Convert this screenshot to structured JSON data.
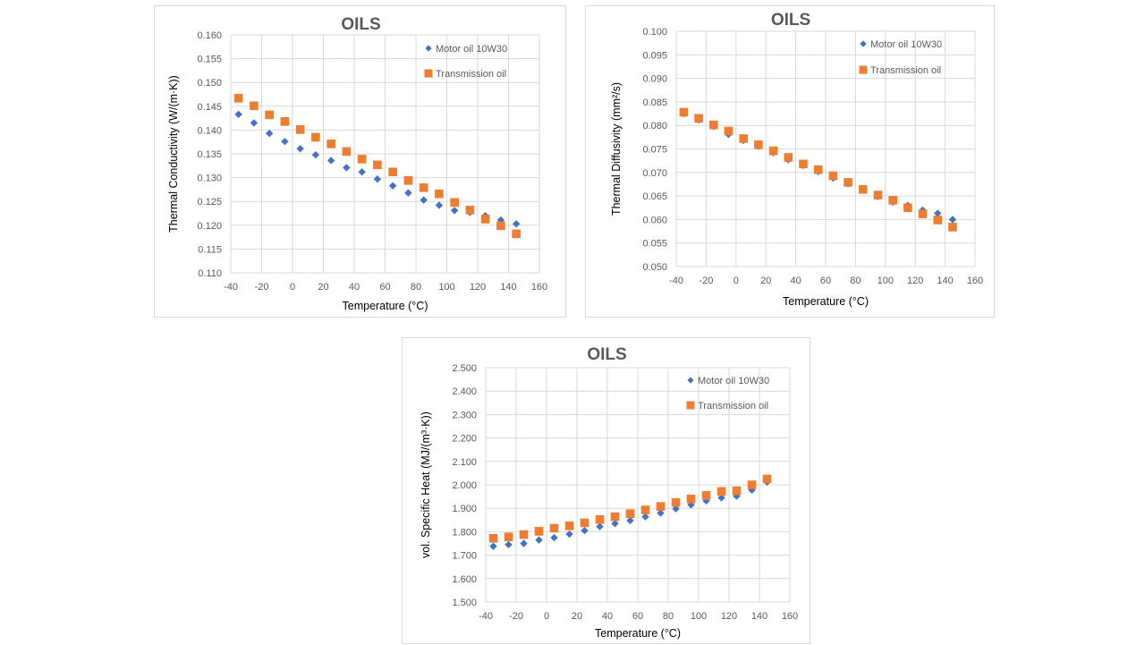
{
  "colors": {
    "motor": "#4472c4",
    "transmission": "#ed7d31",
    "grid": "#d9d9d9",
    "text": "#595959"
  },
  "chart_data": [
    {
      "type": "scatter",
      "title": "OILS",
      "xlabel": "Temperature (°C)",
      "ylabel": "Thermal Conductivity (W/(m·K))",
      "xlim": [
        -40,
        160
      ],
      "ylim": [
        0.11,
        0.16
      ],
      "xticks": [
        -40,
        -20,
        0,
        20,
        40,
        60,
        80,
        100,
        120,
        140,
        160
      ],
      "yticks": [
        0.11,
        0.115,
        0.12,
        0.125,
        0.13,
        0.135,
        0.14,
        0.145,
        0.15,
        0.155,
        0.16
      ],
      "ytick_decimals": 3,
      "legend_position": "top-right",
      "x": [
        -35,
        -25,
        -15,
        -5,
        5,
        15,
        25,
        35,
        45,
        55,
        65,
        75,
        85,
        95,
        105,
        115,
        125,
        135,
        145
      ],
      "series": [
        {
          "name": "Motor oil 10W30",
          "marker": "diamond",
          "values": [
            0.1433,
            0.1415,
            0.1393,
            0.1376,
            0.1361,
            0.1348,
            0.1336,
            0.1321,
            0.1312,
            0.1297,
            0.1283,
            0.1268,
            0.1253,
            0.1242,
            0.1231,
            0.1227,
            0.122,
            0.1211,
            0.1203
          ]
        },
        {
          "name": "Transmission oil",
          "marker": "square",
          "values": [
            0.1467,
            0.1451,
            0.1432,
            0.1418,
            0.1401,
            0.1385,
            0.1371,
            0.1355,
            0.1339,
            0.1327,
            0.1312,
            0.1294,
            0.1279,
            0.1266,
            0.1248,
            0.1232,
            0.1213,
            0.1199,
            0.1182
          ]
        }
      ]
    },
    {
      "type": "scatter",
      "title": "OILS",
      "xlabel": "Temperature (°C)",
      "ylabel": "Thermal Diffusivity (mm²/s)",
      "xlim": [
        -40,
        160
      ],
      "ylim": [
        0.05,
        0.1
      ],
      "xticks": [
        -40,
        -20,
        0,
        20,
        40,
        60,
        80,
        100,
        120,
        140,
        160
      ],
      "yticks": [
        0.05,
        0.055,
        0.06,
        0.065,
        0.07,
        0.075,
        0.08,
        0.085,
        0.09,
        0.095,
        0.1
      ],
      "ytick_decimals": 3,
      "legend_position": "top-right",
      "x": [
        -35,
        -25,
        -15,
        -5,
        5,
        15,
        25,
        35,
        45,
        55,
        65,
        75,
        85,
        95,
        105,
        115,
        125,
        135,
        145
      ],
      "series": [
        {
          "name": "Motor oil 10W30",
          "marker": "diamond",
          "values": [
            0.0825,
            0.0812,
            0.0798,
            0.0781,
            0.0768,
            0.0756,
            0.0742,
            0.0727,
            0.0715,
            0.0702,
            0.0688,
            0.0676,
            0.0663,
            0.0649,
            0.0637,
            0.063,
            0.062,
            0.0613,
            0.06
          ]
        },
        {
          "name": "Transmission oil",
          "marker": "square",
          "values": [
            0.0828,
            0.0815,
            0.0801,
            0.0788,
            0.0772,
            0.0759,
            0.0746,
            0.0732,
            0.0718,
            0.0706,
            0.0693,
            0.0679,
            0.0664,
            0.0652,
            0.0641,
            0.0625,
            0.0612,
            0.0599,
            0.0584
          ]
        }
      ]
    },
    {
      "type": "scatter",
      "title": "OILS",
      "xlabel": "Temperature (°C)",
      "ylabel": "vol. Specific Heat (MJ/(m³·K))",
      "xlim": [
        -40,
        160
      ],
      "ylim": [
        1.5,
        2.5
      ],
      "xticks": [
        -40,
        -20,
        0,
        20,
        40,
        60,
        80,
        100,
        120,
        140,
        160
      ],
      "yticks": [
        1.5,
        1.6,
        1.7,
        1.8,
        1.9,
        2.0,
        2.1,
        2.2,
        2.3,
        2.4,
        2.5
      ],
      "ytick_decimals": 3,
      "legend_position": "top-right",
      "x": [
        -35,
        -25,
        -15,
        -5,
        5,
        15,
        25,
        35,
        45,
        55,
        65,
        75,
        85,
        95,
        105,
        115,
        125,
        135,
        145
      ],
      "series": [
        {
          "name": "Motor oil 10W30",
          "marker": "diamond",
          "values": [
            1.738,
            1.745,
            1.75,
            1.765,
            1.775,
            1.79,
            1.805,
            1.822,
            1.835,
            1.848,
            1.864,
            1.88,
            1.898,
            1.915,
            1.932,
            1.945,
            1.952,
            1.978,
            2.012
          ]
        },
        {
          "name": "Transmission oil",
          "marker": "square",
          "values": [
            1.772,
            1.778,
            1.788,
            1.802,
            1.815,
            1.825,
            1.838,
            1.852,
            1.864,
            1.877,
            1.893,
            1.908,
            1.925,
            1.94,
            1.955,
            1.972,
            1.975,
            2.0,
            2.025
          ]
        }
      ]
    }
  ]
}
